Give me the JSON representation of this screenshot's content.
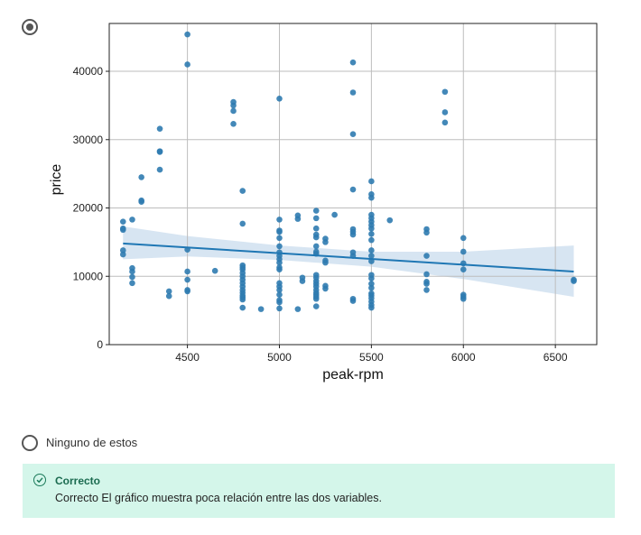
{
  "options": [
    {
      "label": "",
      "selected": true
    },
    {
      "label": "Ninguno de estos",
      "selected": false
    }
  ],
  "feedback": {
    "icon": "check-circle-icon",
    "title": "Correcto",
    "message": "Correcto El gráfico muestra poca relación entre las dos variables.",
    "color": "#d4f6ea"
  },
  "chart_data": {
    "type": "scatter",
    "xlabel": "peak-rpm",
    "ylabel": "price",
    "xlim": [
      4075,
      6725
    ],
    "ylim": [
      0,
      47000
    ],
    "xticks": [
      "4500",
      "5000",
      "5500",
      "6000",
      "6500"
    ],
    "yticks": [
      "0",
      "10000",
      "20000",
      "30000",
      "40000"
    ],
    "xtick_values": [
      4500,
      5000,
      5500,
      6000,
      6500
    ],
    "ytick_values": [
      0,
      10000,
      20000,
      30000,
      40000
    ],
    "grid": true,
    "point_color": "#2f7bb0",
    "fit_line": {
      "x": [
        4150,
        6600
      ],
      "y": [
        14800,
        10700
      ],
      "color": "#1f77b4"
    },
    "confidence_band": {
      "x": [
        4150,
        4500,
        5000,
        5500,
        6000,
        6600
      ],
      "upper": [
        17300,
        15900,
        14500,
        13600,
        13600,
        14500
      ],
      "lower": [
        12500,
        12900,
        12400,
        11400,
        9600,
        7000
      ],
      "color": "#c9dcee"
    },
    "points": [
      [
        4150,
        18000
      ],
      [
        4150,
        17000
      ],
      [
        4150,
        16800
      ],
      [
        4150,
        13800
      ],
      [
        4150,
        13200
      ],
      [
        4200,
        18300
      ],
      [
        4200,
        11200
      ],
      [
        4200,
        10700
      ],
      [
        4200,
        9900
      ],
      [
        4200,
        9000
      ],
      [
        4250,
        24500
      ],
      [
        4250,
        21100
      ],
      [
        4250,
        20900
      ],
      [
        4350,
        31600
      ],
      [
        4350,
        28300
      ],
      [
        4350,
        28200
      ],
      [
        4350,
        25600
      ],
      [
        4400,
        7800
      ],
      [
        4400,
        7100
      ],
      [
        4500,
        45400
      ],
      [
        4500,
        41000
      ],
      [
        4500,
        13900
      ],
      [
        4500,
        10700
      ],
      [
        4500,
        9500
      ],
      [
        4500,
        8000
      ],
      [
        4500,
        7800
      ],
      [
        4650,
        10800
      ],
      [
        4750,
        35500
      ],
      [
        4750,
        35000
      ],
      [
        4750,
        34200
      ],
      [
        4750,
        32300
      ],
      [
        4800,
        22500
      ],
      [
        4800,
        17700
      ],
      [
        4800,
        11600
      ],
      [
        4800,
        11300
      ],
      [
        4800,
        11000
      ],
      [
        4800,
        10500
      ],
      [
        4800,
        10000
      ],
      [
        4800,
        9500
      ],
      [
        4800,
        9000
      ],
      [
        4800,
        8500
      ],
      [
        4800,
        8000
      ],
      [
        4800,
        7600
      ],
      [
        4800,
        7200
      ],
      [
        4800,
        6900
      ],
      [
        4800,
        6600
      ],
      [
        4800,
        5400
      ],
      [
        4900,
        5200
      ],
      [
        5000,
        36000
      ],
      [
        5000,
        18300
      ],
      [
        5000,
        16700
      ],
      [
        5000,
        16500
      ],
      [
        5000,
        15600
      ],
      [
        5000,
        14400
      ],
      [
        5000,
        13500
      ],
      [
        5000,
        13000
      ],
      [
        5000,
        12500
      ],
      [
        5000,
        12000
      ],
      [
        5000,
        11300
      ],
      [
        5000,
        11000
      ],
      [
        5000,
        9000
      ],
      [
        5000,
        8500
      ],
      [
        5000,
        8000
      ],
      [
        5000,
        7300
      ],
      [
        5000,
        6500
      ],
      [
        5000,
        6200
      ],
      [
        5000,
        5300
      ],
      [
        5100,
        18900
      ],
      [
        5100,
        18400
      ],
      [
        5100,
        5200
      ],
      [
        5125,
        9800
      ],
      [
        5125,
        9300
      ],
      [
        5200,
        19600
      ],
      [
        5200,
        18500
      ],
      [
        5200,
        17000
      ],
      [
        5200,
        16100
      ],
      [
        5200,
        15700
      ],
      [
        5200,
        14400
      ],
      [
        5200,
        13600
      ],
      [
        5200,
        13300
      ],
      [
        5200,
        10200
      ],
      [
        5200,
        9800
      ],
      [
        5200,
        9300
      ],
      [
        5200,
        8900
      ],
      [
        5200,
        8500
      ],
      [
        5200,
        8000
      ],
      [
        5200,
        7600
      ],
      [
        5200,
        7300
      ],
      [
        5200,
        7000
      ],
      [
        5200,
        6700
      ],
      [
        5200,
        5600
      ],
      [
        5250,
        15500
      ],
      [
        5250,
        15000
      ],
      [
        5250,
        12300
      ],
      [
        5250,
        12000
      ],
      [
        5250,
        8600
      ],
      [
        5250,
        8200
      ],
      [
        5300,
        19000
      ],
      [
        5400,
        41300
      ],
      [
        5400,
        36900
      ],
      [
        5400,
        30800
      ],
      [
        5400,
        22700
      ],
      [
        5400,
        16900
      ],
      [
        5400,
        16500
      ],
      [
        5400,
        16100
      ],
      [
        5400,
        13500
      ],
      [
        5400,
        13000
      ],
      [
        5400,
        6700
      ],
      [
        5400,
        6400
      ],
      [
        5500,
        23900
      ],
      [
        5500,
        22000
      ],
      [
        5500,
        21500
      ],
      [
        5500,
        19000
      ],
      [
        5500,
        18500
      ],
      [
        5500,
        18000
      ],
      [
        5500,
        17500
      ],
      [
        5500,
        17000
      ],
      [
        5500,
        16200
      ],
      [
        5500,
        15300
      ],
      [
        5500,
        13800
      ],
      [
        5500,
        13000
      ],
      [
        5500,
        12200
      ],
      [
        5500,
        10200
      ],
      [
        5500,
        9700
      ],
      [
        5500,
        8900
      ],
      [
        5500,
        8300
      ],
      [
        5500,
        7500
      ],
      [
        5500,
        7200
      ],
      [
        5500,
        6800
      ],
      [
        5500,
        6300
      ],
      [
        5500,
        5800
      ],
      [
        5500,
        5400
      ],
      [
        5600,
        18200
      ],
      [
        5800,
        16900
      ],
      [
        5800,
        16400
      ],
      [
        5800,
        13000
      ],
      [
        5800,
        10300
      ],
      [
        5800,
        9200
      ],
      [
        5800,
        8900
      ],
      [
        5800,
        8000
      ],
      [
        5900,
        37000
      ],
      [
        5900,
        34000
      ],
      [
        5900,
        32500
      ],
      [
        6000,
        15600
      ],
      [
        6000,
        13600
      ],
      [
        6000,
        11900
      ],
      [
        6000,
        11000
      ],
      [
        6000,
        7300
      ],
      [
        6000,
        7000
      ],
      [
        6000,
        6700
      ],
      [
        6600,
        9500
      ],
      [
        6600,
        9300
      ]
    ]
  }
}
